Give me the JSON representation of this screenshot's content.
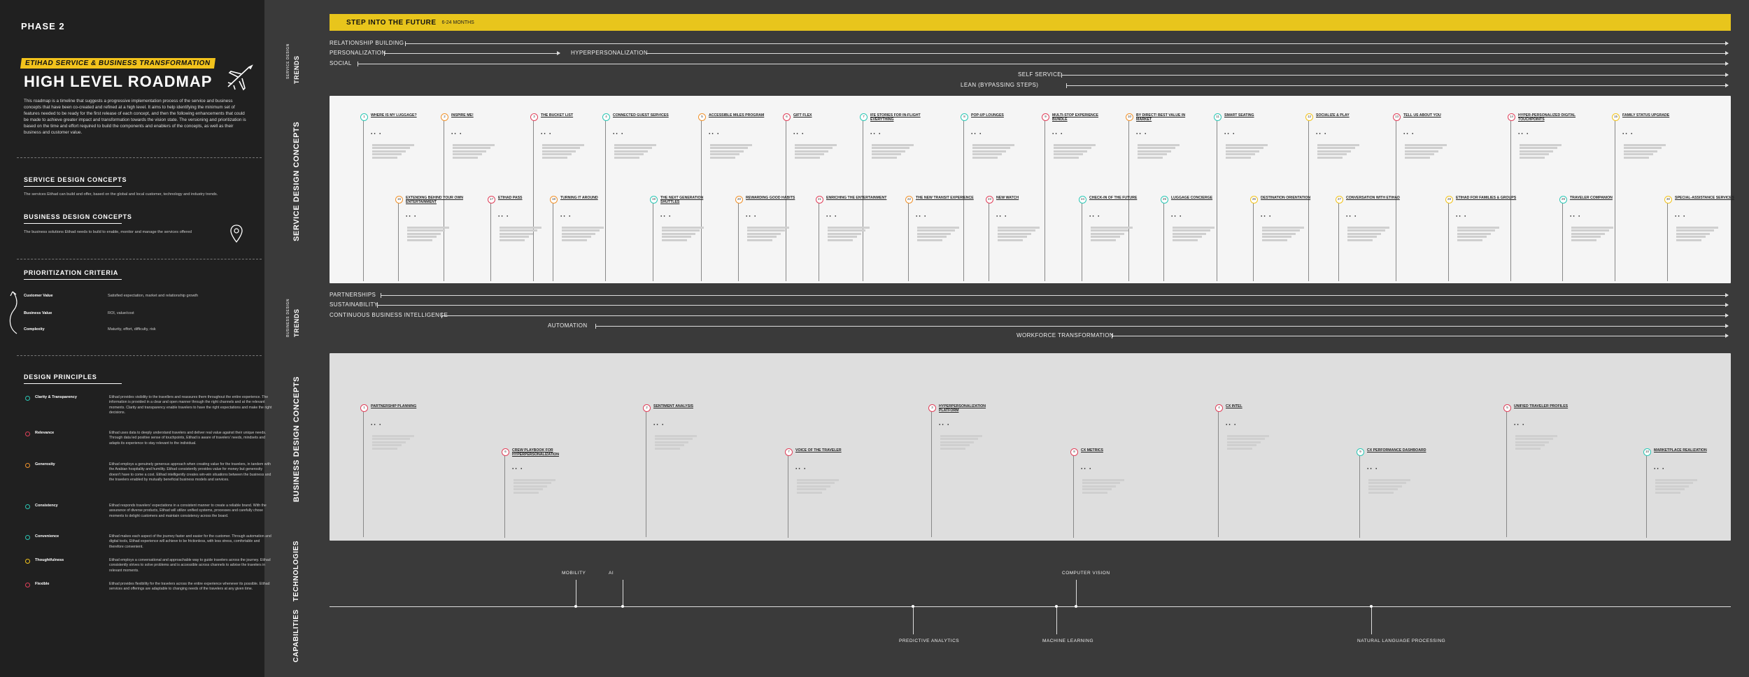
{
  "sidebar": {
    "phase": "PHASE 2",
    "tag": "ETIHAD SERVICE & BUSINESS TRANSFORMATION",
    "title": "HIGH LEVEL ROADMAP",
    "plane_icon": "airplane-icon",
    "intro": "This roadmap is a timeline that suggests a progressive implementation process of the service and business concepts that have been co-created and refined at a high level. It aims to help identifying the minimum set of features needed to be ready for the first release of each concept, and then the following enhancements that could be made to achieve greater impact and transformation towards the vision state. The versioning and prioritization is based on the time and effort required to build the components and enablers of the concepts, as well as their business and customer value.",
    "sd_head": "SERVICE DESIGN CONCEPTS",
    "sd_text": "The services Etihad can build and offer, based on the global and local customer, technology and industry trends.",
    "bd_head": "BUSINESS DESIGN CONCEPTS",
    "bd_text": "The business solutions Etihad needs to build to enable, monitor and manage the services offered",
    "pin_icon": "map-pin-icon",
    "pc_head": "PRIORITIZATION CRITERIA",
    "pc_rows": [
      {
        "label": "Customer Value",
        "text": "Satisfied expectation, market and relationship growth"
      },
      {
        "label": "Business Value",
        "text": "ROI, value/cost"
      },
      {
        "label": "Complexity",
        "text": "Maturity, effort, difficulty, risk"
      }
    ],
    "dp_head": "DESIGN PRINCIPLES",
    "dp_rows": [
      {
        "label": "Clarity & Transparency",
        "color": "#2bc7b5",
        "text": "Etihad provides visibility to the travellers and reassures them throughout the entire experience. The information is provided in a clear and open manner through the right channels and at the relevant moments. Clarity and transparency enable travelers to have the right expectations and make the right decisions."
      },
      {
        "label": "Relevance",
        "color": "#e0405a",
        "text": "Etihad uses data to deeply understand travelers and deliver real value against their unique needs. Through data led positive sense of touchpoints, Etihad is aware of travelers' needs, mindsets and adapts its experience to stay relevant to the individual."
      },
      {
        "label": "Generosity",
        "color": "#f0922c",
        "text": "Etihad employs a genuinely generous approach when creating value for the travelers, in tandem with the Arabian hospitality and humility. Etihad consistently provides value for money but generosity doesn't have to come a cost. Etihad intelligently creates win-win situations between the business and the travelers enabled by mutually beneficial business models and services."
      },
      {
        "label": "Consistency",
        "color": "#2bc7b5",
        "text": "Etihad responds travelers' expectations in a consistent manner to create a reliable brand. With the assurance of diverse products, Etihad will utilize unified systems, processes and carefully chose moments to delight customers and maintain consistency across the board."
      },
      {
        "label": "Convenience",
        "color": "#2bc7b5",
        "text": "Etihad makes each aspect of the journey faster and easier for the customer. Through automation and digital tools, Etihad experience will achieve to be frictionless, with less stress, comfortable and therefore convenient."
      },
      {
        "label": "Thoughtfulness",
        "color": "#f2c31c",
        "text": "Etihad employs a conversational and approachable way to guide travelers across the journey. Etihad consistently strives to solve problems and is accessible across channels to advise the travelers in relevant moments."
      },
      {
        "label": "Flexible",
        "color": "#e0405a",
        "text": "Etihad provides flexibility for the travelers across the entire experience whenever its possible. Etihad services and offerings are adaptable to changing needs of the travelers at any given time."
      }
    ]
  },
  "banner": {
    "title": "STEP INTO THE FUTURE",
    "subtitle": "6-24 MONTHS"
  },
  "section_labels": {
    "sd_trends_a": "SERVICE DESIGN",
    "sd_trends_b": "TRENDS",
    "sd_concepts": "SERVICE DESIGN CONCEPTS",
    "bd_trends_a": "BUSINESS DESIGN",
    "bd_trends_b": "TRENDS",
    "bd_concepts": "BUSINESS DESIGN CONCEPTS",
    "technologies": "TECHNOLOGIES",
    "capabilities": "CAPABILITIES"
  },
  "sd_trends": [
    "RELATIONSHIP BUILDING",
    "PERSONALIZATION",
    "HYPERPERSONALIZATION",
    "SOCIAL",
    "SELF SERVICE",
    "LEAN (BYPASSING STEPS)"
  ],
  "bd_trends": [
    "PARTNERSHIPS",
    "SUSTAINABILITY",
    "CONTINUOUS BUSINESS INTELLIGENCE",
    "AUTOMATION",
    "WORKFORCE TRANSFORMATION"
  ],
  "sd_cards": [
    {
      "n": "1",
      "t": "WHERE IS MY LUGGAGE?",
      "c": "#2bc7b5"
    },
    {
      "n": "2",
      "t": "INSPIRE ME!",
      "c": "#f0922c"
    },
    {
      "n": "3",
      "t": "THE BUCKET LIST",
      "c": "#e0405a"
    },
    {
      "n": "4",
      "t": "CONNECTED GUEST SERVICES",
      "c": "#2bc7b5"
    },
    {
      "n": "5",
      "t": "ACCESSIBLE MILES PROGRAM",
      "c": "#f0922c"
    },
    {
      "n": "6",
      "t": "GIFT FLEX",
      "c": "#e0405a"
    },
    {
      "n": "7",
      "t": "IFE STORIES FOR IN-FLIGHT EVERYTHING",
      "c": "#2bc7b5"
    },
    {
      "n": "8",
      "t": "POP-UP LOUNGES",
      "c": "#2bc7b5"
    },
    {
      "n": "9",
      "t": "MULTI-STOP EXPERIENCE BUNDLE",
      "c": "#e0405a"
    },
    {
      "n": "10",
      "t": "BY DIRECT! BEST VALUE IN MARKET",
      "c": "#f0922c"
    },
    {
      "n": "11",
      "t": "SMART SEATING",
      "c": "#2bc7b5"
    },
    {
      "n": "12",
      "t": "SOCIALIZE & PLAY",
      "c": "#f2c31c"
    },
    {
      "n": "13",
      "t": "TELL US ABOUT YOU",
      "c": "#e0405a"
    },
    {
      "n": "14",
      "t": "HYPER-PERSONALIZED DIGITAL TOUCHPOINTS",
      "c": "#e0405a"
    },
    {
      "n": "15",
      "t": "FAMILY STATUS UPGRADE",
      "c": "#f2c31c"
    },
    {
      "n": "16",
      "t": "EXTENDING BEHIND YOUR OWN ENTERTAINMENT",
      "c": "#f0922c"
    },
    {
      "n": "17",
      "t": "ETIHAD PASS",
      "c": "#e0405a"
    },
    {
      "n": "18",
      "t": "TURNING IT AROUND",
      "c": "#f0922c"
    },
    {
      "n": "19",
      "t": "THE NEXT GENERATION SHUTTLES",
      "c": "#2bc7b5"
    },
    {
      "n": "20",
      "t": "REWARDING GOOD HABITS",
      "c": "#f0922c"
    },
    {
      "n": "21",
      "t": "ENRICHING THE ENTERTAINMENT",
      "c": "#e0405a"
    },
    {
      "n": "22",
      "t": "THE NEW TRANSIT EXPERIENCE",
      "c": "#f0922c"
    },
    {
      "n": "23",
      "t": "NEW WATCH",
      "c": "#e0405a"
    },
    {
      "n": "24",
      "t": "CHECK-IN OF THE FUTURE",
      "c": "#2bc7b5"
    },
    {
      "n": "25",
      "t": "LUGGAGE CONCIERGE",
      "c": "#2bc7b5"
    },
    {
      "n": "26",
      "t": "DESTINATION ORIENTATION",
      "c": "#f2c31c"
    },
    {
      "n": "27",
      "t": "CONVERSATION WITH ETIHAD",
      "c": "#f2c31c"
    },
    {
      "n": "28",
      "t": "ETIHAD FOR FAMILIES & GROUPS",
      "c": "#f2c31c"
    },
    {
      "n": "29",
      "t": "TRAVELER COMPANION",
      "c": "#2bc7b5"
    },
    {
      "n": "30",
      "t": "SPECIAL-ASSISTANCE SERVICES",
      "c": "#f2c31c"
    }
  ],
  "bd_cards": [
    {
      "n": "1",
      "t": "PARTNERSHIP PLANNING",
      "c": "#e0405a"
    },
    {
      "n": "2",
      "t": "SENTIMENT ANALYSIS",
      "c": "#e0405a"
    },
    {
      "n": "3",
      "t": "HYPERPERSONALIZATION PLATFORM",
      "c": "#e0405a"
    },
    {
      "n": "4",
      "t": "CX INTEL",
      "c": "#e0405a"
    },
    {
      "n": "5",
      "t": "UNIFIED TRAVELER PROFILES",
      "c": "#e0405a"
    },
    {
      "n": "6",
      "t": "CREW PLAYBOOK FOR HYPERPERSONALIZATION",
      "c": "#e0405a"
    },
    {
      "n": "7",
      "t": "VOICE OF THE TRAVELER",
      "c": "#e0405a"
    },
    {
      "n": "8",
      "t": "CX METRICS",
      "c": "#e0405a"
    },
    {
      "n": "9",
      "t": "CX PERFORMANCE DASHBOARD",
      "c": "#2bc7b5"
    },
    {
      "n": "10",
      "t": "MARKETPLACE REALIZATION",
      "c": "#2bc7b5"
    }
  ],
  "technologies": [
    "MOBILITY",
    "AI",
    "COMPUTER VISION"
  ],
  "capabilities": [
    "PREDICTIVE ANALYTICS",
    "MACHINE LEARNING",
    "NATURAL LANGUAGE PROCESSING"
  ]
}
